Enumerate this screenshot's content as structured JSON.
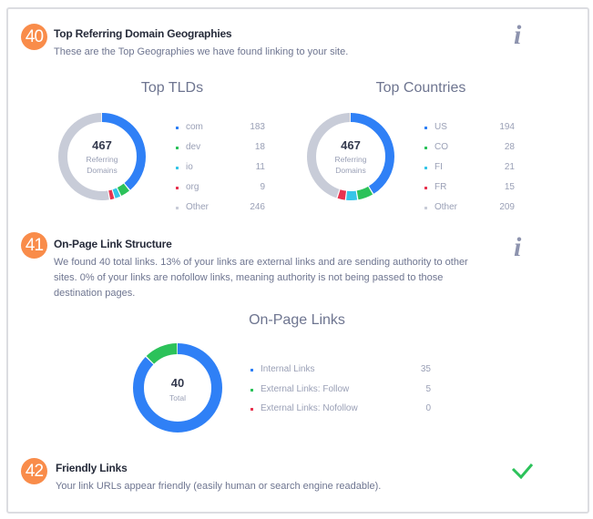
{
  "colors": {
    "blue": "#2f80f6",
    "green": "#2cc25a",
    "cyan": "#36c5e8",
    "red": "#e8334f",
    "gray": "#c8ccd8",
    "badge": "#f98c4a",
    "check": "#2cc25a"
  },
  "sections": [
    {
      "number": "40",
      "title": "Top Referring Domain Geographies",
      "description": "These are the Top Geographies we have found linking to your site.",
      "icon": "info-icon"
    },
    {
      "number": "41",
      "title": "On-Page Link Structure",
      "description": "We found 40 total links. 13% of your links are external links and are sending authority to other sites. 0% of your links are nofollow links, meaning authority is not being passed to those destination pages.",
      "icon": "info-icon"
    },
    {
      "number": "42",
      "title": "Friendly Links",
      "description": "Your link URLs appear friendly (easily human or search engine readable).",
      "icon": "check-icon"
    }
  ],
  "chart_data": [
    {
      "type": "pie",
      "title": "Top TLDs",
      "center_value": "467",
      "center_label": "Referring Domains",
      "categories": [
        "com",
        "dev",
        "io",
        "org",
        "Other"
      ],
      "values": [
        183,
        18,
        11,
        9,
        246
      ],
      "colors": [
        "#2f80f6",
        "#2cc25a",
        "#36c5e8",
        "#e8334f",
        "#c8ccd8"
      ]
    },
    {
      "type": "pie",
      "title": "Top Countries",
      "center_value": "467",
      "center_label": "Referring Domains",
      "categories": [
        "US",
        "CO",
        "FI",
        "FR",
        "Other"
      ],
      "values": [
        194,
        28,
        21,
        15,
        209
      ],
      "colors": [
        "#2f80f6",
        "#2cc25a",
        "#36c5e8",
        "#e8334f",
        "#c8ccd8"
      ]
    },
    {
      "type": "pie",
      "title": "On-Page Links",
      "center_value": "40",
      "center_label": "Total",
      "categories": [
        "Internal Links",
        "External Links: Follow",
        "External Links: Nofollow"
      ],
      "values": [
        35,
        5,
        0
      ],
      "colors": [
        "#2f80f6",
        "#2cc25a",
        "#e8334f"
      ]
    }
  ]
}
